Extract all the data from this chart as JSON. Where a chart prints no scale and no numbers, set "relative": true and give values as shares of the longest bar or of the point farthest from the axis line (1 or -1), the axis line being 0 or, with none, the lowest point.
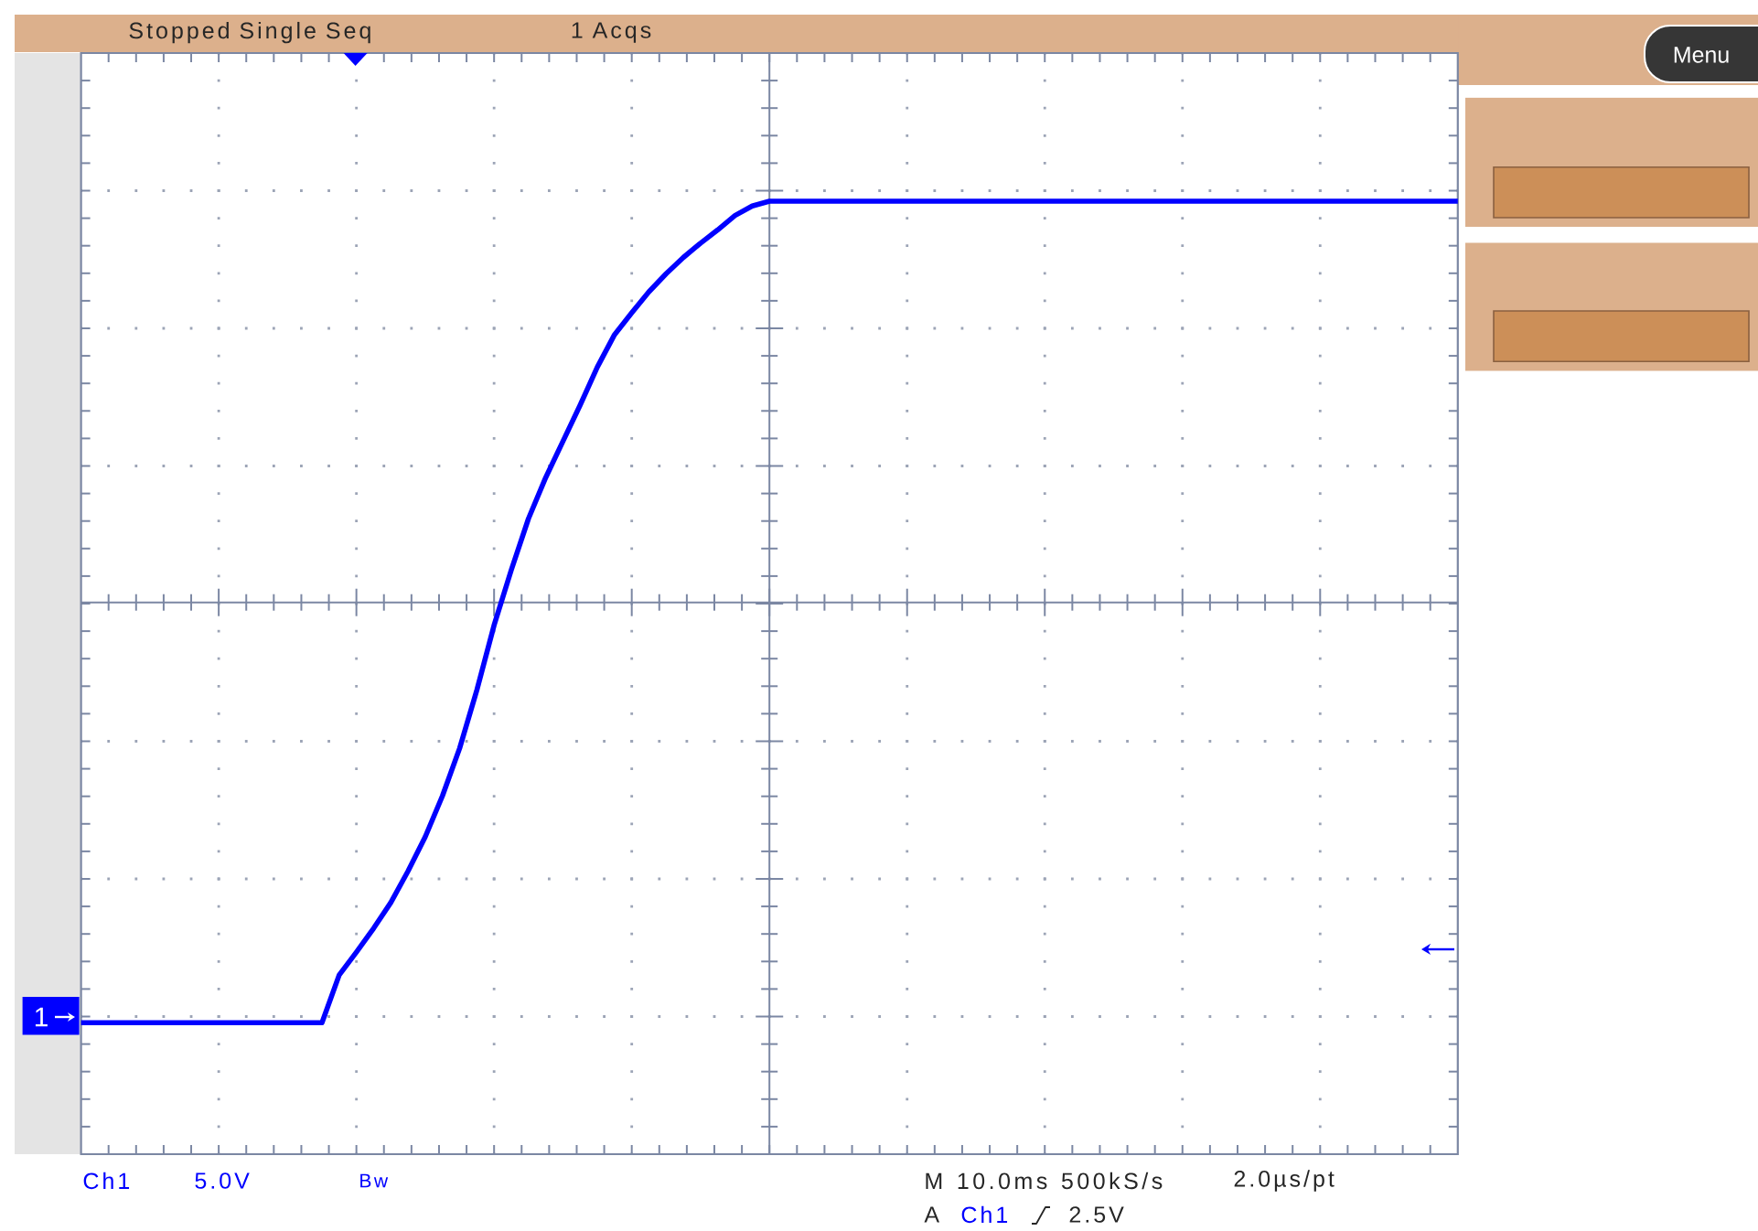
{
  "chart_data": {
    "type": "line",
    "relative": true,
    "grid": true,
    "color": "#0000ff",
    "categories": [
      null,
      null,
      null,
      null,
      null,
      null,
      null,
      null,
      null,
      null,
      null,
      null,
      null,
      null,
      null,
      null,
      null,
      null,
      null,
      null,
      null,
      null,
      null,
      null,
      null,
      null,
      null,
      null,
      null,
      null,
      null,
      null,
      null,
      null,
      null,
      null,
      null,
      null,
      null,
      null,
      null,
      null,
      null,
      null,
      null,
      null,
      null,
      null,
      null,
      null,
      null,
      null,
      null,
      null,
      null,
      null,
      null,
      null,
      null,
      null,
      null,
      null,
      null,
      null,
      null,
      null,
      null,
      null,
      null,
      null,
      null,
      null,
      null,
      null,
      null,
      null,
      null,
      null,
      null,
      null,
      null
    ],
    "values": [
      0.138,
      0.138,
      0.138,
      0.138,
      0.138,
      0.138,
      0.138,
      0.138,
      0.138,
      0.138,
      0.138,
      0.138,
      0.138,
      0.138,
      0.138,
      0.188,
      0.212,
      0.237,
      0.264,
      0.297,
      0.333,
      0.376,
      0.426,
      0.487,
      0.555,
      0.613,
      0.667,
      0.71,
      0.748,
      0.786,
      0.826,
      0.86,
      0.883,
      0.905,
      0.924,
      0.941,
      0.956,
      0.97,
      0.985,
      0.995,
      1,
      1,
      1,
      1,
      1,
      1,
      1,
      1,
      1,
      1,
      1,
      1,
      1,
      1,
      1,
      1,
      1,
      1,
      1,
      1,
      1,
      1,
      1,
      1,
      1,
      1,
      1,
      1,
      1,
      1,
      1,
      1,
      1,
      1,
      1,
      1,
      1,
      1,
      1,
      1,
      1
    ],
    "ref_lines": [
      {
        "axis": "y",
        "value": 0.579
      }
    ],
    "annotations": [
      "Stopped Single Seq",
      "1 Acqs",
      "Menu",
      "1",
      "Ch1",
      "5.0V",
      "Bw",
      "M 10.0ms 500kS/s",
      "2.0µs/pt",
      "A",
      "Ch1",
      "2.5V"
    ]
  }
}
